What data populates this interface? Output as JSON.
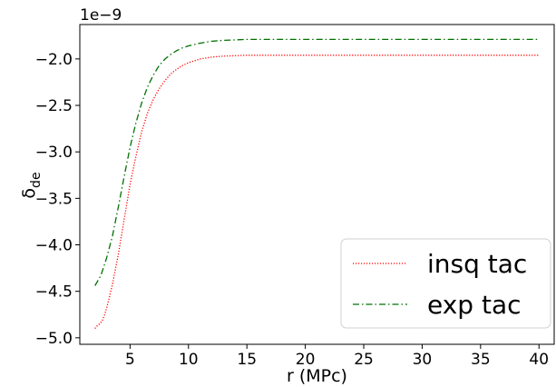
{
  "chart_data": {
    "type": "line",
    "xlabel": "r (MPc)",
    "ylabel": "δ",
    "ylabel_sub": "de",
    "y_offset_label": "1e−9",
    "y_multiplier": 1e-09,
    "xlim": [
      0.7,
      41.3
    ],
    "ylim": [
      -5.07,
      -1.63
    ],
    "x_ticks": [
      5,
      10,
      15,
      20,
      25,
      30,
      35,
      40
    ],
    "y_ticks": [
      -5.0,
      -4.5,
      -4.0,
      -3.5,
      -3.0,
      -2.5,
      -2.0
    ],
    "y_tick_labels": [
      "−5.0",
      "−4.5",
      "−4.0",
      "−3.5",
      "−3.0",
      "−2.5",
      "−2.0"
    ],
    "legend_position": "lower-right",
    "series": [
      {
        "name": "insq tac",
        "color": "#ff0000",
        "style": "dotted",
        "x": [
          2.0,
          2.2,
          2.4,
          2.6,
          2.8,
          3.0,
          3.2,
          3.5,
          4.0,
          4.5,
          5.0,
          5.5,
          6.0,
          6.5,
          7.0,
          7.5,
          8.0,
          8.5,
          9.0,
          9.5,
          10.0,
          11.0,
          12.0,
          13.0,
          14.0,
          15.0,
          17.0,
          20.0,
          25.0,
          30.0,
          35.0,
          40.0
        ],
        "y": [
          -4.9,
          -4.87,
          -4.85,
          -4.82,
          -4.76,
          -4.68,
          -4.58,
          -4.42,
          -4.1,
          -3.72,
          -3.35,
          -3.05,
          -2.78,
          -2.58,
          -2.43,
          -2.32,
          -2.23,
          -2.16,
          -2.11,
          -2.07,
          -2.04,
          -2.0,
          -1.98,
          -1.97,
          -1.965,
          -1.96,
          -1.96,
          -1.96,
          -1.96,
          -1.96,
          -1.96,
          -1.96
        ]
      },
      {
        "name": "exp tac",
        "color": "#007000",
        "style": "dashdot",
        "x": [
          2.0,
          2.5,
          3.0,
          3.5,
          4.0,
          4.5,
          5.0,
          5.5,
          6.0,
          6.5,
          7.0,
          7.5,
          8.0,
          8.5,
          9.0,
          9.5,
          10.0,
          11.0,
          12.0,
          13.0,
          14.0,
          15.0,
          17.0,
          20.0,
          25.0,
          30.0,
          35.0,
          40.0
        ],
        "y": [
          -4.44,
          -4.33,
          -4.14,
          -3.9,
          -3.59,
          -3.26,
          -2.95,
          -2.69,
          -2.47,
          -2.3,
          -2.17,
          -2.07,
          -2.0,
          -1.95,
          -1.91,
          -1.88,
          -1.86,
          -1.83,
          -1.81,
          -1.8,
          -1.795,
          -1.79,
          -1.79,
          -1.79,
          -1.79,
          -1.79,
          -1.79,
          -1.79
        ]
      }
    ]
  }
}
